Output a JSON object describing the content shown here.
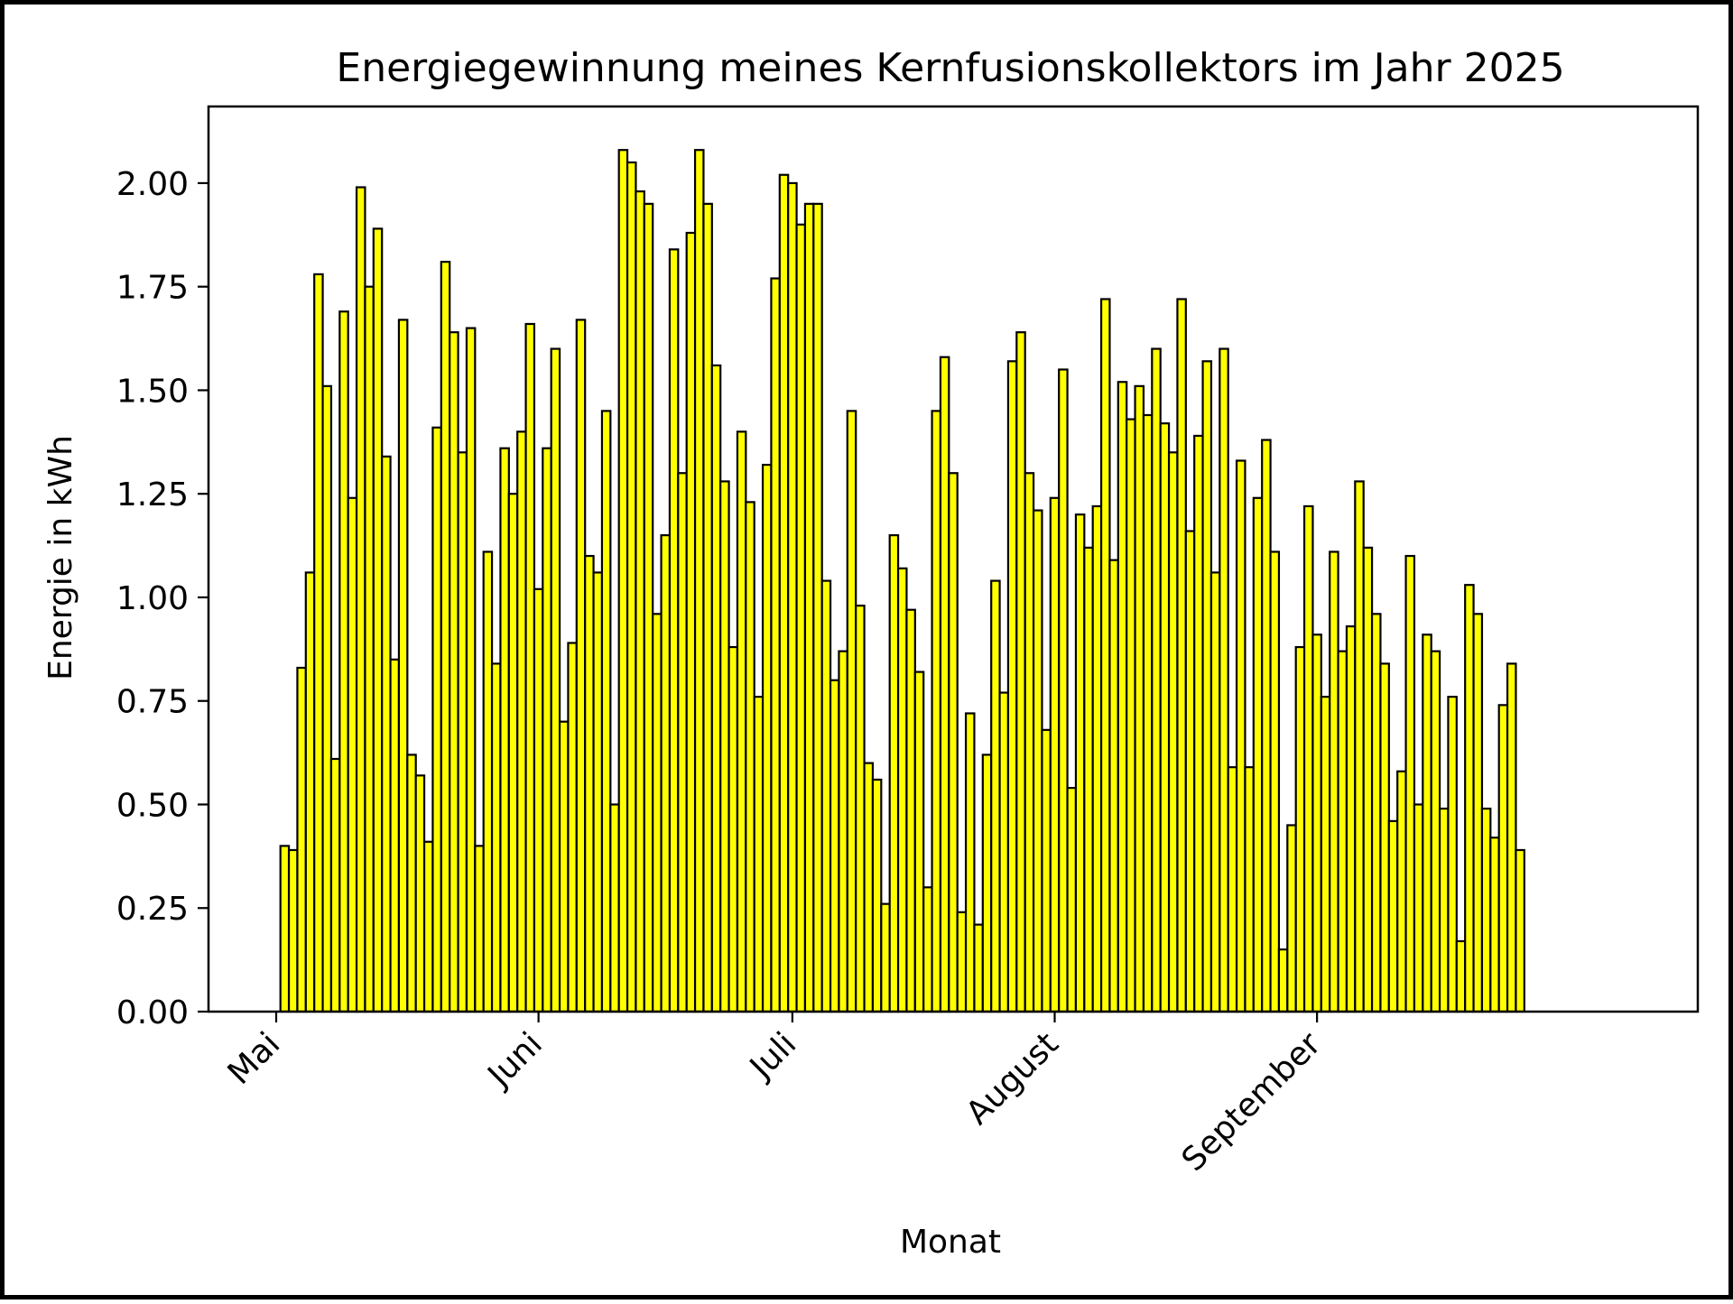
{
  "chart_data": {
    "type": "bar",
    "title": "Energiegewinnung meines Kernfusionskollektors im Jahr 2025",
    "xlabel": "Monat",
    "ylabel": "Energie in kWh",
    "x_start": "2025-05-01",
    "x_end": "2025-09-29",
    "xlim": [
      "2025-04-23",
      "2025-10-16"
    ],
    "ylim": [
      0,
      2.185
    ],
    "yticks": [
      0.0,
      0.25,
      0.5,
      0.75,
      1.0,
      1.25,
      1.5,
      1.75,
      2.0
    ],
    "ytick_labels": [
      "0.00",
      "0.25",
      "0.50",
      "0.75",
      "1.00",
      "1.25",
      "1.50",
      "1.75",
      "2.00"
    ],
    "xticks": [
      "2025-05-01",
      "2025-06-01",
      "2025-07-01",
      "2025-08-01",
      "2025-09-01"
    ],
    "xtick_labels": [
      "Mai",
      "Juni",
      "Juli",
      "August",
      "September"
    ],
    "values": [
      0.0,
      0.4,
      0.39,
      0.83,
      1.06,
      1.78,
      1.51,
      0.61,
      1.69,
      1.24,
      1.99,
      1.75,
      1.89,
      1.34,
      0.85,
      1.67,
      0.62,
      0.57,
      0.41,
      1.41,
      1.81,
      1.64,
      1.35,
      1.65,
      0.4,
      1.11,
      0.84,
      1.36,
      1.25,
      1.4,
      1.66,
      1.02,
      1.36,
      1.6,
      0.7,
      0.89,
      1.67,
      1.1,
      1.06,
      1.45,
      0.5,
      2.08,
      2.05,
      1.98,
      1.95,
      0.96,
      1.15,
      1.84,
      1.3,
      1.88,
      2.08,
      1.95,
      1.56,
      1.28,
      0.88,
      1.4,
      1.23,
      0.76,
      1.32,
      1.77,
      2.02,
      2.0,
      1.9,
      1.95,
      1.95,
      1.04,
      0.8,
      0.87,
      1.45,
      0.98,
      0.6,
      0.56,
      0.26,
      1.15,
      1.07,
      0.97,
      0.82,
      0.3,
      1.45,
      1.58,
      1.3,
      0.24,
      0.72,
      0.21,
      0.62,
      1.04,
      0.77,
      1.57,
      1.64,
      1.3,
      1.21,
      0.68,
      1.24,
      1.55,
      0.54,
      1.2,
      1.12,
      1.22,
      1.72,
      1.09,
      1.52,
      1.43,
      1.51,
      1.44,
      1.6,
      1.42,
      1.35,
      1.72,
      1.16,
      1.39,
      1.57,
      1.06,
      1.6,
      0.59,
      1.33,
      0.59,
      1.24,
      1.38,
      1.11,
      0.15,
      0.45,
      0.88,
      1.22,
      0.91,
      0.76,
      1.11,
      0.87,
      0.93,
      1.28,
      1.12,
      0.96,
      0.84,
      0.46,
      0.58,
      1.1,
      0.5,
      0.91,
      0.87,
      0.49,
      0.76,
      0.17,
      1.03,
      0.96,
      0.49,
      0.42,
      0.74,
      0.84,
      0.39
    ],
    "bar_color": "#ffff00",
    "edge_color": "#000000",
    "grid": false,
    "legend": "none"
  }
}
